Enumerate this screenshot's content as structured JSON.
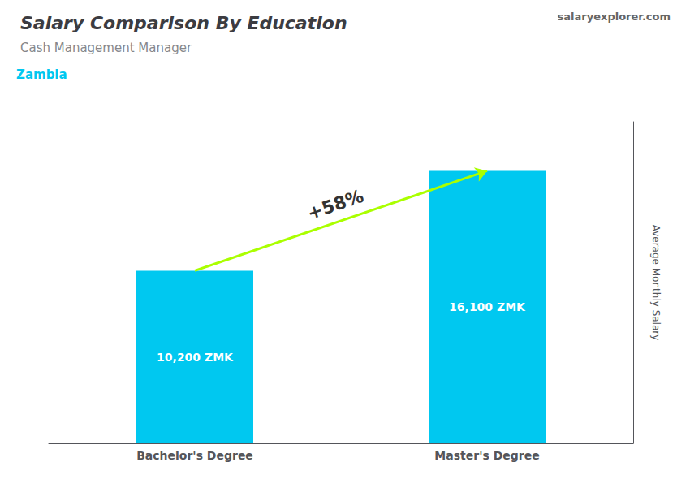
{
  "chart_data": {
    "type": "bar",
    "title": "Salary Comparison By Education",
    "subtitle": "Cash Management Manager",
    "ylabel": "Average Monthly Salary",
    "categories": [
      "Bachelor's Degree",
      "Master's Degree"
    ],
    "values": [
      10200,
      16100
    ],
    "value_labels": [
      "10,200 ZMK",
      "16,100 ZMK"
    ],
    "data_labels": true,
    "color": "#00C8F0",
    "ylim": [
      0,
      19000
    ],
    "grid": false,
    "tick_labels": "x",
    "annotations": [
      {
        "text": "+58%",
        "color": "#AAFF00"
      },
      {
        "text": "Zambia",
        "color": "#00C8F0"
      },
      {
        "text": "salaryexplorer.com"
      }
    ]
  }
}
